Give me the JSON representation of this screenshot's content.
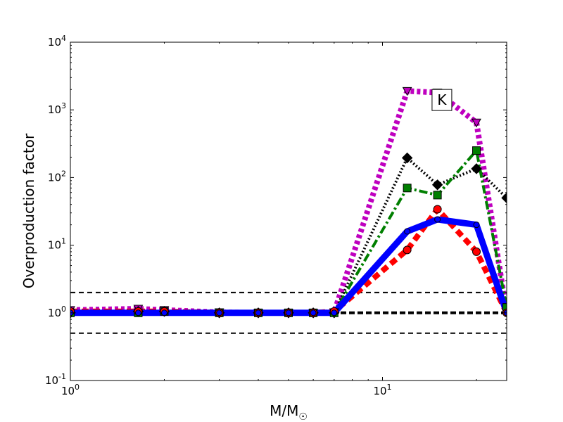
{
  "chart_data": {
    "type": "line",
    "xscale": "log",
    "yscale": "log",
    "xlim": [
      1,
      25
    ],
    "ylim": [
      0.1,
      10000
    ],
    "xlabel": "M/M",
    "xlabel_symbol": "☉",
    "ylabel": "Overproduction factor",
    "x_ticks": [
      {
        "value": 1,
        "base": "10",
        "exp": "0"
      },
      {
        "value": 10,
        "base": "10",
        "exp": "1"
      }
    ],
    "y_ticks": [
      {
        "value": 0.1,
        "base": "10",
        "exp": "-1"
      },
      {
        "value": 1,
        "base": "10",
        "exp": "0"
      },
      {
        "value": 10,
        "base": "10",
        "exp": "1"
      },
      {
        "value": 100,
        "base": "10",
        "exp": "2"
      },
      {
        "value": 1000,
        "base": "10",
        "exp": "3"
      },
      {
        "value": 10000,
        "base": "10",
        "exp": "4"
      }
    ],
    "annotation": {
      "text": "K",
      "x": 15.5,
      "y": 1400
    },
    "reference_lines": [
      {
        "y": 2,
        "style": "dashed",
        "width": 2
      },
      {
        "y": 1,
        "style": "dashed",
        "width": 4
      },
      {
        "y": 0.5,
        "style": "dashed",
        "width": 2
      }
    ],
    "series": [
      {
        "color": "#bf00bf",
        "style": "dotted",
        "width": 8,
        "marker": "triangle-down",
        "x": [
          1,
          1.65,
          2,
          3,
          4,
          5,
          6,
          7,
          12,
          15,
          20,
          25
        ],
        "y": [
          1.1,
          1.15,
          1.1,
          1.02,
          1.0,
          1.0,
          1.0,
          1.02,
          1900,
          1800,
          650,
          1.0
        ]
      },
      {
        "color": "#000000",
        "style": "dotted",
        "width": 4,
        "marker": "diamond",
        "x": [
          1,
          1.65,
          2,
          3,
          4,
          5,
          6,
          7,
          12,
          15,
          20,
          25
        ],
        "y": [
          1.0,
          1.05,
          1.05,
          1.0,
          1.0,
          1.0,
          1.0,
          1.0,
          195,
          78,
          135,
          50
        ]
      },
      {
        "color": "#007f00",
        "style": "dashdot",
        "width": 4,
        "marker": "square",
        "x": [
          1,
          1.65,
          2,
          3,
          4,
          5,
          6,
          7,
          12,
          15,
          20,
          25
        ],
        "y": [
          1.0,
          1.0,
          1.05,
          1.0,
          1.0,
          1.0,
          1.0,
          1.0,
          70,
          55,
          250,
          1.2
        ]
      },
      {
        "color": "#ff0000",
        "style": "dashed",
        "width": 8,
        "marker": "circle",
        "x": [
          1,
          1.65,
          2,
          3,
          4,
          5,
          6,
          7,
          12,
          15,
          20,
          25
        ],
        "y": [
          1.05,
          1.05,
          1.05,
          1.0,
          1.0,
          1.0,
          1.0,
          1.05,
          8.5,
          34,
          8,
          1.0
        ]
      },
      {
        "color": "#0000ff",
        "style": "solid",
        "width": 9,
        "marker": "circle-small",
        "x": [
          1,
          1.65,
          2,
          3,
          4,
          5,
          6,
          7,
          12,
          15,
          20,
          25
        ],
        "y": [
          1.0,
          1.0,
          1.0,
          1.0,
          1.0,
          1.0,
          1.0,
          1.0,
          16,
          24,
          20,
          1.0
        ]
      }
    ]
  }
}
